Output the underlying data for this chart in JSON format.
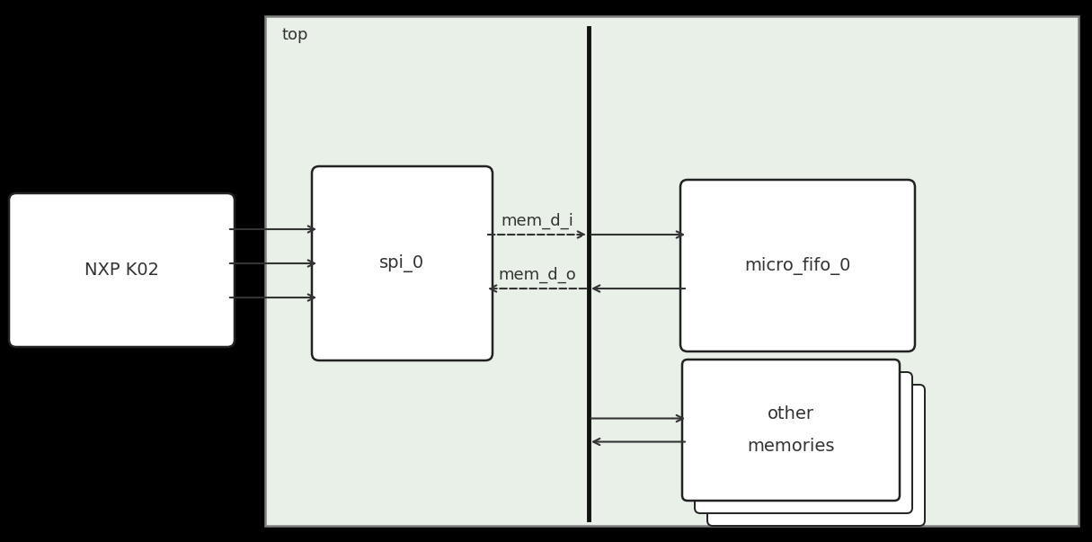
{
  "bg_color": "#000000",
  "top_box_color": "#e8f0e8",
  "top_box_edge": "#808080",
  "white_box_color": "#ffffff",
  "white_box_edge": "#222222",
  "title_top": "top",
  "label_nxp": "NXP K02",
  "label_spi": "spi_0",
  "label_fifo": "micro_fifo_0",
  "label_other1": "other",
  "label_other2": "memories",
  "label_mem_di": "mem_d_i",
  "label_mem_do": "mem_d_o",
  "figsize": [
    12.15,
    6.03
  ],
  "dpi": 100,
  "arrow_color": "#333333",
  "font_size_main": 14,
  "font_size_label": 13
}
